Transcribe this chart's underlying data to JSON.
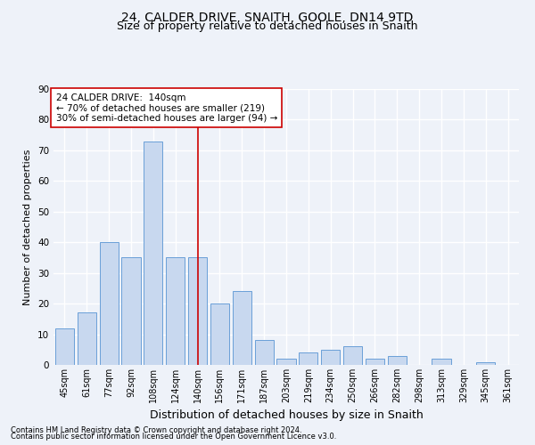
{
  "title1": "24, CALDER DRIVE, SNAITH, GOOLE, DN14 9TD",
  "title2": "Size of property relative to detached houses in Snaith",
  "xlabel": "Distribution of detached houses by size in Snaith",
  "ylabel": "Number of detached properties",
  "categories": [
    "45sqm",
    "61sqm",
    "77sqm",
    "92sqm",
    "108sqm",
    "124sqm",
    "140sqm",
    "156sqm",
    "171sqm",
    "187sqm",
    "203sqm",
    "219sqm",
    "234sqm",
    "250sqm",
    "266sqm",
    "282sqm",
    "298sqm",
    "313sqm",
    "329sqm",
    "345sqm",
    "361sqm"
  ],
  "values": [
    12,
    17,
    40,
    35,
    73,
    35,
    35,
    20,
    24,
    8,
    2,
    4,
    5,
    6,
    2,
    3,
    0,
    2,
    0,
    1,
    0
  ],
  "bar_color": "#c8d8ef",
  "bar_edge_color": "#6a9fd8",
  "marker_index": 6,
  "marker_color": "#cc0000",
  "annotation_title": "24 CALDER DRIVE:  140sqm",
  "annotation_line1": "← 70% of detached houses are smaller (219)",
  "annotation_line2": "30% of semi-detached houses are larger (94) →",
  "ylim": [
    0,
    90
  ],
  "yticks": [
    0,
    10,
    20,
    30,
    40,
    50,
    60,
    70,
    80,
    90
  ],
  "footnote1": "Contains HM Land Registry data © Crown copyright and database right 2024.",
  "footnote2": "Contains public sector information licensed under the Open Government Licence v3.0.",
  "background_color": "#eef2f9",
  "grid_color": "#ffffff",
  "title1_fontsize": 10,
  "title2_fontsize": 9,
  "xlabel_fontsize": 9,
  "ylabel_fontsize": 8,
  "annotation_fontsize": 7.5,
  "tick_fontsize": 7,
  "footnote_fontsize": 6
}
